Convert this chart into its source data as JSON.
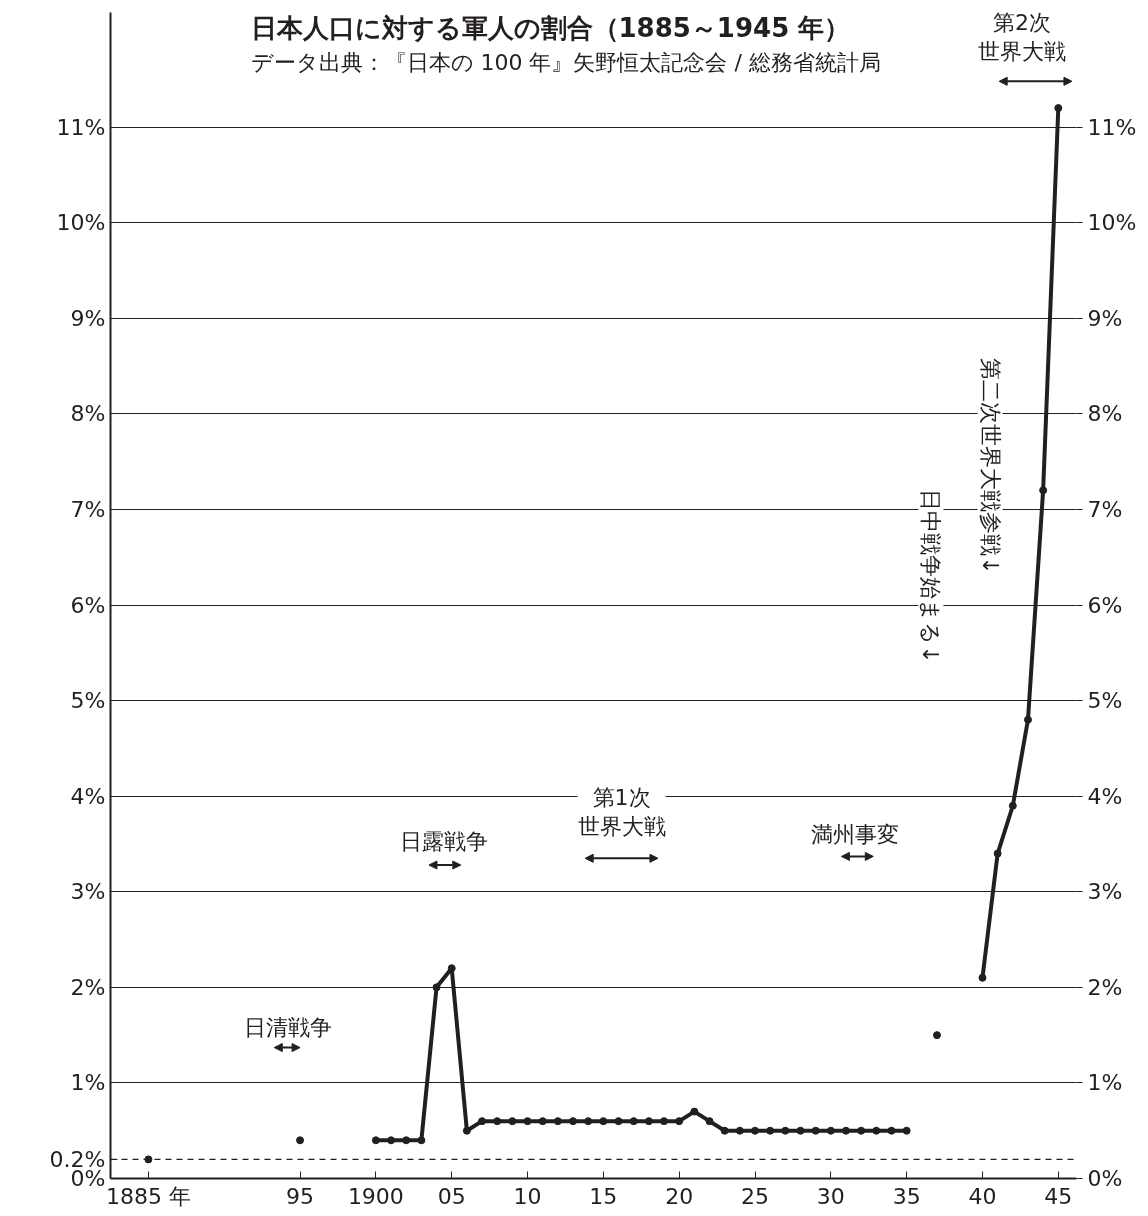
{
  "chart_data": {
    "type": "line",
    "title": "日本人口に対する軍人の割合（1885～1945 年）",
    "subtitle": "データ出典：『日本の 100 年』矢野恒太記念会 / 総務省統計局",
    "x": [
      1885,
      1890,
      1895,
      1898,
      1900,
      1901,
      1902,
      1903,
      1904,
      1905,
      1906,
      1907,
      1908,
      1909,
      1910,
      1911,
      1912,
      1913,
      1914,
      1915,
      1916,
      1917,
      1918,
      1919,
      1920,
      1921,
      1922,
      1923,
      1924,
      1925,
      1926,
      1927,
      1928,
      1929,
      1930,
      1931,
      1932,
      1933,
      1934,
      1935,
      1936,
      1937,
      1938,
      1940,
      1941,
      1942,
      1943,
      1944,
      1945
    ],
    "series": [
      {
        "color": "#231f20",
        "values": [
          0.2,
          null,
          0.4,
          null,
          0.4,
          0.4,
          0.4,
          0.4,
          2.0,
          2.2,
          0.5,
          0.6,
          0.6,
          0.6,
          0.6,
          0.6,
          0.6,
          0.6,
          0.6,
          0.6,
          0.6,
          0.6,
          0.6,
          0.6,
          0.6,
          0.7,
          0.6,
          0.5,
          0.5,
          0.5,
          0.5,
          0.5,
          0.5,
          0.5,
          0.5,
          0.5,
          0.5,
          0.5,
          0.5,
          0.5,
          null,
          1.5,
          null,
          2.1,
          3.4,
          3.9,
          4.8,
          7.2,
          11.2
        ]
      }
    ],
    "marker": "circle",
    "line_style": "solid",
    "grid": "y",
    "xlim": [
      1882.5,
      1946.2
    ],
    "xticks": [
      {
        "value": 1885,
        "label": "1885 年"
      },
      {
        "value": 1895,
        "label": "95"
      },
      {
        "value": 1900,
        "label": "1900"
      },
      {
        "value": 1905,
        "label": "05"
      },
      {
        "value": 1910,
        "label": "10"
      },
      {
        "value": 1915,
        "label": "15"
      },
      {
        "value": 1920,
        "label": "20"
      },
      {
        "value": 1925,
        "label": "25"
      },
      {
        "value": 1930,
        "label": "30"
      },
      {
        "value": 1935,
        "label": "35"
      },
      {
        "value": 1940,
        "label": "40"
      },
      {
        "value": 1945,
        "label": "45"
      }
    ],
    "ylim": [
      0,
      12.2
    ],
    "yticks": [
      {
        "value": 0,
        "label": "0%"
      },
      {
        "value": 0.2,
        "label": "0.2%"
      },
      {
        "value": 1,
        "label": "1%"
      },
      {
        "value": 2,
        "label": "2%"
      },
      {
        "value": 3,
        "label": "3%"
      },
      {
        "value": 4,
        "label": "4%"
      },
      {
        "value": 5,
        "label": "5%"
      },
      {
        "value": 6,
        "label": "6%"
      },
      {
        "value": 7,
        "label": "7%"
      },
      {
        "value": 8,
        "label": "8%"
      },
      {
        "value": 9,
        "label": "9%"
      },
      {
        "value": 10,
        "label": "10%"
      },
      {
        "value": 11,
        "label": "11%"
      }
    ],
    "y2lim": [
      0,
      12.2
    ],
    "y2ticks": [
      {
        "value": 0,
        "label": "0%"
      },
      {
        "value": 1,
        "label": "1%"
      },
      {
        "value": 2,
        "label": "2%"
      },
      {
        "value": 3,
        "label": "3%"
      },
      {
        "value": 4,
        "label": "4%"
      },
      {
        "value": 5,
        "label": "5%"
      },
      {
        "value": 6,
        "label": "6%"
      },
      {
        "value": 7,
        "label": "7%"
      },
      {
        "value": 8,
        "label": "8%"
      },
      {
        "value": 9,
        "label": "9%"
      },
      {
        "value": 10,
        "label": "10%"
      },
      {
        "value": 11,
        "label": "11%"
      }
    ],
    "ref_lines": [
      {
        "axis": "y",
        "value": 0.2,
        "label": null,
        "line_style": "dashed",
        "color": "#231f20"
      }
    ],
    "annotations": [
      "日清戦争",
      "日露戦争",
      "第1次世界大戦",
      "満州事変",
      "日中戦争始まる↓",
      "第二次世界大戦参戦↓",
      "第2次世界大戦"
    ]
  }
}
